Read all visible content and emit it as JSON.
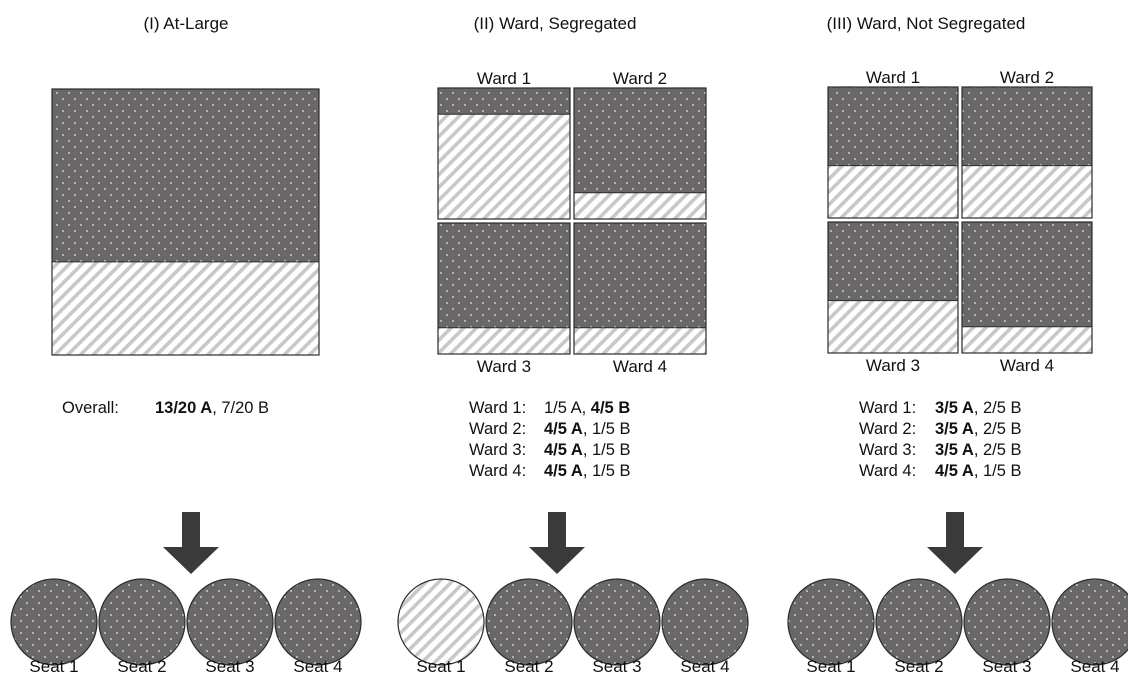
{
  "colors": {
    "A": "#6a6767",
    "B_stripe": "#c8c8c8",
    "arrow": "#3a3a3a",
    "border": "#2b2b2b"
  },
  "panels": [
    {
      "title": "(I) At-Large",
      "areas": [
        {
          "name": "",
          "a_fraction": 0.65
        }
      ],
      "summary": [
        {
          "label": "Overall:",
          "a": "13/20 A",
          "b": "7/20 B",
          "winner": "A"
        }
      ],
      "seats": [
        {
          "label": "Seat 1",
          "party": "A"
        },
        {
          "label": "Seat 2",
          "party": "A"
        },
        {
          "label": "Seat 3",
          "party": "A"
        },
        {
          "label": "Seat 4",
          "party": "A"
        }
      ]
    },
    {
      "title": "(II) Ward, Segregated",
      "areas": [
        {
          "name": "Ward 1",
          "a_fraction": 0.2
        },
        {
          "name": "Ward 2",
          "a_fraction": 0.8
        },
        {
          "name": "Ward 3",
          "a_fraction": 0.8
        },
        {
          "name": "Ward 4",
          "a_fraction": 0.8
        }
      ],
      "summary": [
        {
          "label": "Ward 1:",
          "a": "1/5 A",
          "b": "4/5 B",
          "winner": "B"
        },
        {
          "label": "Ward 2:",
          "a": "4/5 A",
          "b": "1/5 B",
          "winner": "A"
        },
        {
          "label": "Ward 3:",
          "a": "4/5 A",
          "b": "1/5 B",
          "winner": "A"
        },
        {
          "label": "Ward 4:",
          "a": "4/5 A",
          "b": "1/5 B",
          "winner": "A"
        }
      ],
      "seats": [
        {
          "label": "Seat 1",
          "party": "B"
        },
        {
          "label": "Seat 2",
          "party": "A"
        },
        {
          "label": "Seat 3",
          "party": "A"
        },
        {
          "label": "Seat 4",
          "party": "A"
        }
      ]
    },
    {
      "title": "(III) Ward, Not Segregated",
      "areas": [
        {
          "name": "Ward 1",
          "a_fraction": 0.6
        },
        {
          "name": "Ward 2",
          "a_fraction": 0.6
        },
        {
          "name": "Ward 3",
          "a_fraction": 0.6
        },
        {
          "name": "Ward 4",
          "a_fraction": 0.8
        }
      ],
      "summary": [
        {
          "label": "Ward 1:",
          "a": "3/5 A",
          "b": "2/5 B",
          "winner": "A"
        },
        {
          "label": "Ward 2:",
          "a": "3/5 A",
          "b": "2/5 B",
          "winner": "A"
        },
        {
          "label": "Ward 3:",
          "a": "3/5 A",
          "b": "2/5 B",
          "winner": "A"
        },
        {
          "label": "Ward 4:",
          "a": "4/5 A",
          "b": "1/5 B",
          "winner": "A"
        }
      ],
      "seats": [
        {
          "label": "Seat 1",
          "party": "A"
        },
        {
          "label": "Seat 2",
          "party": "A"
        },
        {
          "label": "Seat 3",
          "party": "A"
        },
        {
          "label": "Seat 4",
          "party": "A"
        }
      ]
    }
  ]
}
